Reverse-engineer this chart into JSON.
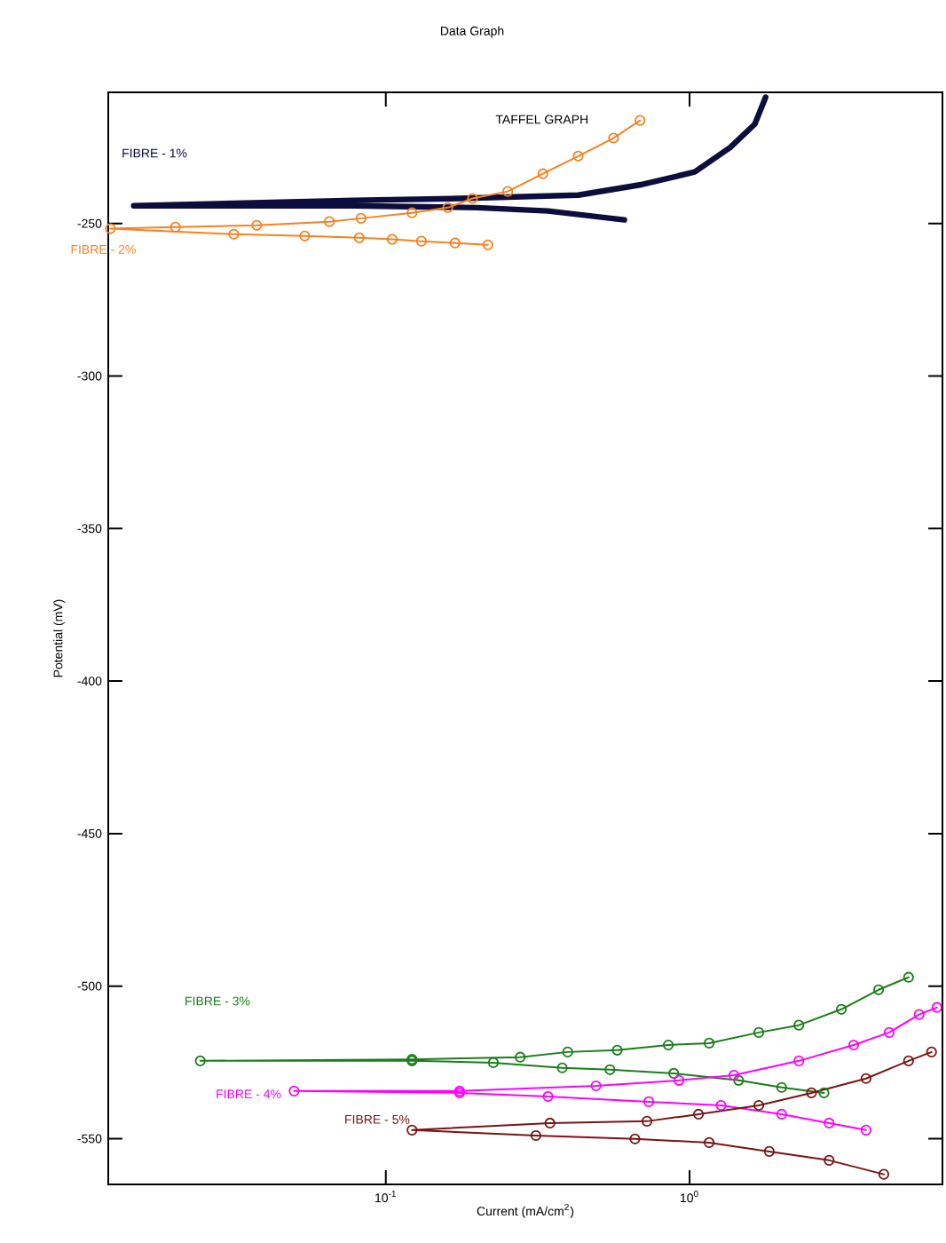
{
  "chart_data": {
    "type": "line",
    "title": "Data Graph",
    "xlabel": "Current (mA/cm$^{2}$)",
    "ylabel": "Potential (mV)",
    "annotations": [
      "TAFFEL GRAPH"
    ],
    "log": "x",
    "xlim": [
      0.0122,
      6.8
    ],
    "ylim": [
      -565,
      -207
    ],
    "xticks": [
      {
        "value": 0.1,
        "label": "10$^{-1}$"
      },
      {
        "value": 1,
        "label": "10$^{0}$"
      }
    ],
    "yticks": [
      -250,
      -300,
      -350,
      -400,
      -450,
      -500,
      -550
    ],
    "grid": false,
    "legend": false,
    "series": [
      {
        "name": "FIBRE - 1%",
        "color": "#0d0d3d",
        "marker": "none",
        "x": [
          0.61,
          0.342,
          0.2,
          0.0786,
          0.0148,
          0.0786,
          0.175,
          0.43,
          0.7,
          1.04,
          1.36,
          1.64,
          1.78
        ],
        "values": [
          -248.8,
          -245.9,
          -244.8,
          -244.2,
          -244.2,
          -242.4,
          -241.8,
          -240.7,
          -237.2,
          -233.1,
          -225.1,
          -217.4,
          -208.6
        ]
      },
      {
        "name": "FIBRE - 2%",
        "color": "#f58220",
        "marker": "circle",
        "x": [
          0.217,
          0.169,
          0.131,
          0.105,
          0.0818,
          0.0541,
          0.0316,
          0.0124,
          0.0203,
          0.0376,
          0.0652,
          0.0829,
          0.122,
          0.16,
          0.193,
          0.252,
          0.329,
          0.43,
          0.562,
          0.687
        ],
        "values": [
          -257.0,
          -256.4,
          -255.8,
          -255.2,
          -254.7,
          -254.1,
          -253.5,
          -251.7,
          -251.2,
          -250.6,
          -249.4,
          -248.3,
          -246.5,
          -244.8,
          -241.8,
          -239.5,
          -233.7,
          -227.9,
          -222.0,
          -216.2
        ]
      },
      {
        "name": "FIBRE - 3%",
        "color": "#1a7d1a",
        "marker": "circle",
        "x": [
          2.77,
          2.01,
          1.45,
          0.887,
          0.547,
          0.381,
          0.226,
          0.122,
          0.0245,
          0.122,
          0.277,
          0.397,
          0.578,
          0.851,
          1.16,
          1.69,
          2.29,
          3.16,
          4.19,
          5.26
        ],
        "values": [
          -535.0,
          -533.2,
          -530.9,
          -528.6,
          -527.4,
          -526.8,
          -525.1,
          -524.5,
          -524.5,
          -524.0,
          -523.3,
          -521.6,
          -521.0,
          -519.3,
          -518.7,
          -515.2,
          -512.8,
          -507.6,
          -501.2,
          -497.1
        ]
      },
      {
        "name": "FIBRE - 4%",
        "color": "#ff00ff",
        "marker": "circle",
        "x": [
          3.81,
          2.88,
          2.01,
          1.27,
          0.734,
          0.342,
          0.175,
          0.0499,
          0.175,
          0.492,
          0.923,
          1.4,
          2.29,
          3.47,
          4.54,
          5.7,
          6.52
        ],
        "values": [
          -547.2,
          -544.9,
          -542.0,
          -539.1,
          -537.9,
          -536.2,
          -535.0,
          -534.4,
          -534.4,
          -532.7,
          -530.9,
          -529.2,
          -524.5,
          -519.3,
          -515.2,
          -509.3,
          -507.0
        ]
      },
      {
        "name": "FIBRE - 5%",
        "color": "#7a1414",
        "marker": "circle",
        "x": [
          4.36,
          2.88,
          1.83,
          1.16,
          0.661,
          0.312,
          0.122,
          0.347,
          0.724,
          1.07,
          1.69,
          2.52,
          3.81,
          5.26,
          6.26
        ],
        "values": [
          -561.7,
          -557.1,
          -554.2,
          -551.3,
          -550.1,
          -549.0,
          -547.2,
          -544.9,
          -544.3,
          -542.0,
          -539.1,
          -535.0,
          -530.3,
          -524.5,
          -521.6
        ]
      }
    ]
  }
}
